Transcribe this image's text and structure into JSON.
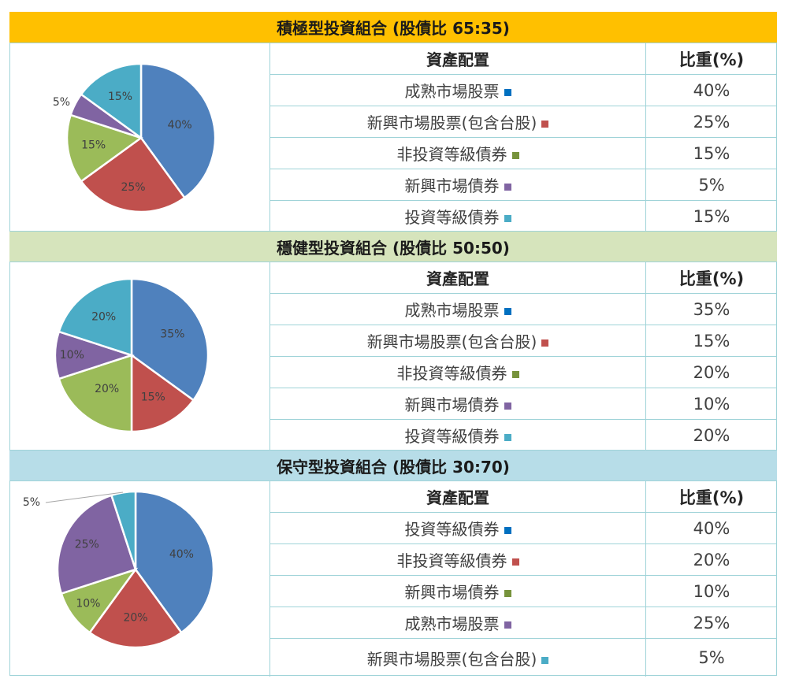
{
  "colors": {
    "border": "#9fd3d8",
    "header_aggressive": "#ffc000",
    "header_balanced": "#d6e4bc",
    "header_conservative": "#b7dde8",
    "slice_blue": "#4f81bd",
    "slice_red": "#c0504d",
    "slice_green": "#9bbb59",
    "slice_purple": "#8064a2",
    "slice_teal": "#4bacc6"
  },
  "portfolios": [
    {
      "title": "積極型投資組合 (股債比 65:35)",
      "table_header": {
        "item": "資產配置",
        "weight": "比重(%)"
      },
      "rows": [
        {
          "item": "成熟市場股票",
          "weight": "40%",
          "marker_color": "#0070c0"
        },
        {
          "item": "新興市場股票(包含台股) ",
          "weight": "25%",
          "marker_color": "#c0504d"
        },
        {
          "item": "非投資等級債券",
          "weight": "15%",
          "marker_color": "#77933c"
        },
        {
          "item": "新興市場債券",
          "weight": "5%",
          "marker_color": "#8064a2"
        },
        {
          "item": "投資等級債券 ",
          "weight": "15%",
          "marker_color": "#4bacc6"
        }
      ]
    },
    {
      "title": "穩健型投資組合 (股債比 50:50)",
      "table_header": {
        "item": "資產配置",
        "weight": "比重(%)"
      },
      "rows": [
        {
          "item": "成熟市場股票",
          "weight": "35%",
          "marker_color": "#0070c0"
        },
        {
          "item": "新興市場股票(包含台股) ",
          "weight": "15%",
          "marker_color": "#c0504d"
        },
        {
          "item": "非投資等級債券",
          "weight": "20%",
          "marker_color": "#77933c"
        },
        {
          "item": "新興市場債券",
          "weight": "10%",
          "marker_color": "#8064a2"
        },
        {
          "item": "投資等級債券",
          "weight": "20%",
          "marker_color": "#4bacc6"
        }
      ]
    },
    {
      "title": "保守型投資組合 (股債比 30:70)",
      "table_header": {
        "item": "資產配置",
        "weight": "比重(%)"
      },
      "rows": [
        {
          "item": "投資等級債券",
          "weight": "40%",
          "marker_color": "#0070c0"
        },
        {
          "item": "非投資等級債券 ",
          "weight": "20%",
          "marker_color": "#c0504d"
        },
        {
          "item": "新興市場債券",
          "weight": "10%",
          "marker_color": "#77933c"
        },
        {
          "item": "成熟市場股票",
          "weight": "25%",
          "marker_color": "#8064a2"
        },
        {
          "item": "新興市場股票(包含台股)",
          "weight": "5%",
          "marker_color": "#4bacc6"
        }
      ]
    }
  ],
  "chart_data": [
    {
      "type": "pie",
      "labels": [
        "成熟市場股票",
        "新興市場股票(包含台股)",
        "非投資等級債券",
        "新興市場債券",
        "投資等級債券"
      ],
      "values": [
        40,
        25,
        15,
        5,
        15
      ],
      "data_labels": [
        "40%",
        "25%",
        "15%",
        "5%",
        "15%"
      ],
      "colors": [
        "#4f81bd",
        "#c0504d",
        "#9bbb59",
        "#8064a2",
        "#4bacc6"
      ]
    },
    {
      "type": "pie",
      "labels": [
        "成熟市場股票",
        "新興市場股票(包含台股)",
        "非投資等級債券",
        "新興市場債券",
        "投資等級債券"
      ],
      "values": [
        35,
        15,
        20,
        10,
        20
      ],
      "data_labels": [
        "35%",
        "15%",
        "20%",
        "10%",
        "20%"
      ],
      "colors": [
        "#4f81bd",
        "#c0504d",
        "#9bbb59",
        "#8064a2",
        "#4bacc6"
      ]
    },
    {
      "type": "pie",
      "labels": [
        "投資等級債券",
        "非投資等級債券",
        "新興市場債券",
        "成熟市場股票",
        "新興市場股票(包含台股)"
      ],
      "values": [
        40,
        20,
        10,
        25,
        5
      ],
      "data_labels": [
        "40%",
        "20%",
        "10%",
        "25%",
        "5%"
      ],
      "colors": [
        "#4f81bd",
        "#c0504d",
        "#9bbb59",
        "#8064a2",
        "#4bacc6"
      ]
    }
  ]
}
